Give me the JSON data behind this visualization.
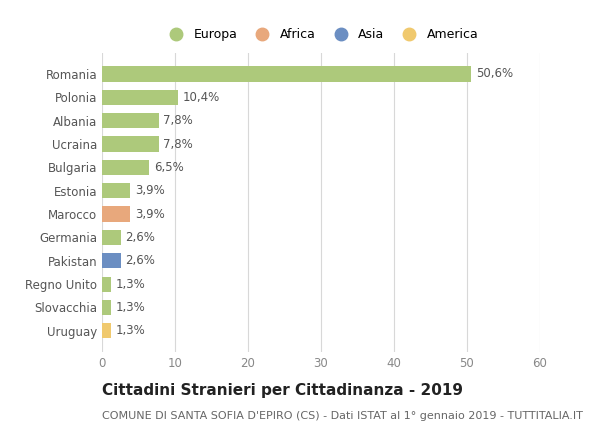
{
  "categories": [
    "Romania",
    "Polonia",
    "Albania",
    "Ucraina",
    "Bulgaria",
    "Estonia",
    "Marocco",
    "Germania",
    "Pakistan",
    "Regno Unito",
    "Slovacchia",
    "Uruguay"
  ],
  "values": [
    50.6,
    10.4,
    7.8,
    7.8,
    6.5,
    3.9,
    3.9,
    2.6,
    2.6,
    1.3,
    1.3,
    1.3
  ],
  "labels": [
    "50,6%",
    "10,4%",
    "7,8%",
    "7,8%",
    "6,5%",
    "3,9%",
    "3,9%",
    "2,6%",
    "2,6%",
    "1,3%",
    "1,3%",
    "1,3%"
  ],
  "colors": [
    "#adc97b",
    "#adc97b",
    "#adc97b",
    "#adc97b",
    "#adc97b",
    "#adc97b",
    "#e8a87c",
    "#adc97b",
    "#6b8ec2",
    "#adc97b",
    "#adc97b",
    "#f0c96e"
  ],
  "legend_labels": [
    "Europa",
    "Africa",
    "Asia",
    "America"
  ],
  "legend_colors": [
    "#adc97b",
    "#e8a87c",
    "#6b8ec2",
    "#f0c96e"
  ],
  "title": "Cittadini Stranieri per Cittadinanza - 2019",
  "subtitle": "COMUNE DI SANTA SOFIA D'EPIRO (CS) - Dati ISTAT al 1° gennaio 2019 - TUTTITALIA.IT",
  "xlim": [
    0,
    60
  ],
  "xticks": [
    0,
    10,
    20,
    30,
    40,
    50,
    60
  ],
  "background_color": "#ffffff",
  "grid_color": "#d8d8d8",
  "bar_height": 0.65,
  "title_fontsize": 11,
  "subtitle_fontsize": 8,
  "tick_fontsize": 8.5,
  "label_fontsize": 8.5,
  "legend_fontsize": 9
}
